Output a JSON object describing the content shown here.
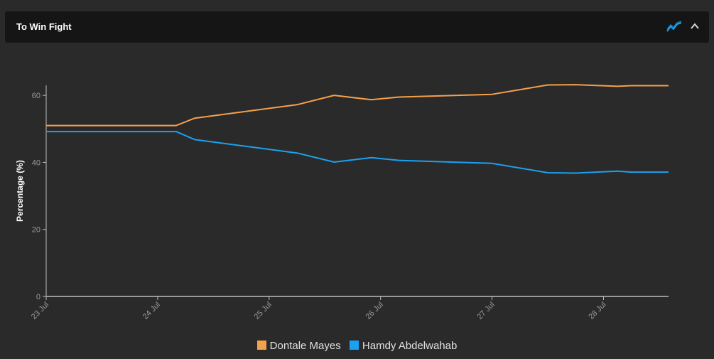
{
  "header": {
    "title": "To Win Fight",
    "chart_icon": "line-chart-icon",
    "collapse_icon": "chevron-up-icon"
  },
  "colors": {
    "background": "#2a2a2a",
    "header_bg": "#151515",
    "series_0": "#f5a04a",
    "series_1": "#1ba1f2",
    "axis": "#bdbdbd",
    "tick_text": "#9a9a9a"
  },
  "chart_data": {
    "type": "line",
    "ylabel": "Percentage (%)",
    "xlabel": "",
    "ylim": [
      0,
      63
    ],
    "xlim": [
      "23 Jul",
      "28 Jul 14:00"
    ],
    "yticks": [
      0,
      20,
      40,
      60
    ],
    "xticks": [
      "23 Jul",
      "24 Jul",
      "25 Jul",
      "26 Jul",
      "27 Jul",
      "28 Jul"
    ],
    "grid": false,
    "legend_position": "bottom",
    "series": [
      {
        "name": "Dontale Mayes",
        "points": [
          [
            "23 Jul 00:00",
            51
          ],
          [
            "24 Jul 04:00",
            51
          ],
          [
            "24 Jul 08:00",
            53.2
          ],
          [
            "25 Jul 06:00",
            57.2
          ],
          [
            "25 Jul 14:00",
            60
          ],
          [
            "25 Jul 22:00",
            58.7
          ],
          [
            "26 Jul 04:00",
            59.5
          ],
          [
            "27 Jul 00:00",
            60.3
          ],
          [
            "27 Jul 12:00",
            63.1
          ],
          [
            "27 Jul 18:00",
            63.2
          ],
          [
            "28 Jul 03:00",
            62.7
          ],
          [
            "28 Jul 06:00",
            62.9
          ],
          [
            "28 Jul 14:00",
            62.9
          ]
        ]
      },
      {
        "name": "Hamdy Abdelwahab",
        "points": [
          [
            "23 Jul 00:00",
            49.2
          ],
          [
            "24 Jul 04:00",
            49.2
          ],
          [
            "24 Jul 08:00",
            46.8
          ],
          [
            "25 Jul 06:00",
            42.8
          ],
          [
            "25 Jul 14:00",
            40.1
          ],
          [
            "25 Jul 22:00",
            41.4
          ],
          [
            "26 Jul 04:00",
            40.6
          ],
          [
            "27 Jul 00:00",
            39.7
          ],
          [
            "27 Jul 12:00",
            36.9
          ],
          [
            "27 Jul 18:00",
            36.8
          ],
          [
            "28 Jul 03:00",
            37.4
          ],
          [
            "28 Jul 06:00",
            37.1
          ],
          [
            "28 Jul 14:00",
            37.1
          ]
        ]
      }
    ]
  }
}
